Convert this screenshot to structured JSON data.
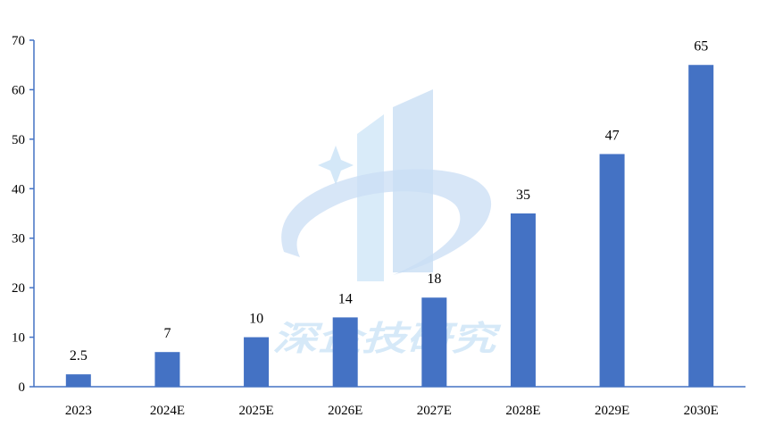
{
  "chart_data": {
    "type": "bar",
    "categories": [
      "2023",
      "2024E",
      "2025E",
      "2026E",
      "2027E",
      "2028E",
      "2029E",
      "2030E"
    ],
    "values": [
      2.5,
      7,
      10,
      14,
      18,
      35,
      47,
      65
    ],
    "data_labels": [
      "2.5",
      "7",
      "10",
      "14",
      "18",
      "35",
      "47",
      "65"
    ],
    "title": "",
    "xlabel": "",
    "ylabel": "",
    "ylim": [
      0,
      70
    ],
    "yticks": [
      0,
      10,
      20,
      30,
      40,
      50,
      60,
      70
    ],
    "ytick_labels": [
      "0",
      "10",
      "20",
      "30",
      "40",
      "50",
      "60",
      "70"
    ],
    "grid": false,
    "legend": "none",
    "bar_color": "#4472c4",
    "axis_color": "#4472c4"
  },
  "watermark": {
    "text": "深企技研究"
  }
}
